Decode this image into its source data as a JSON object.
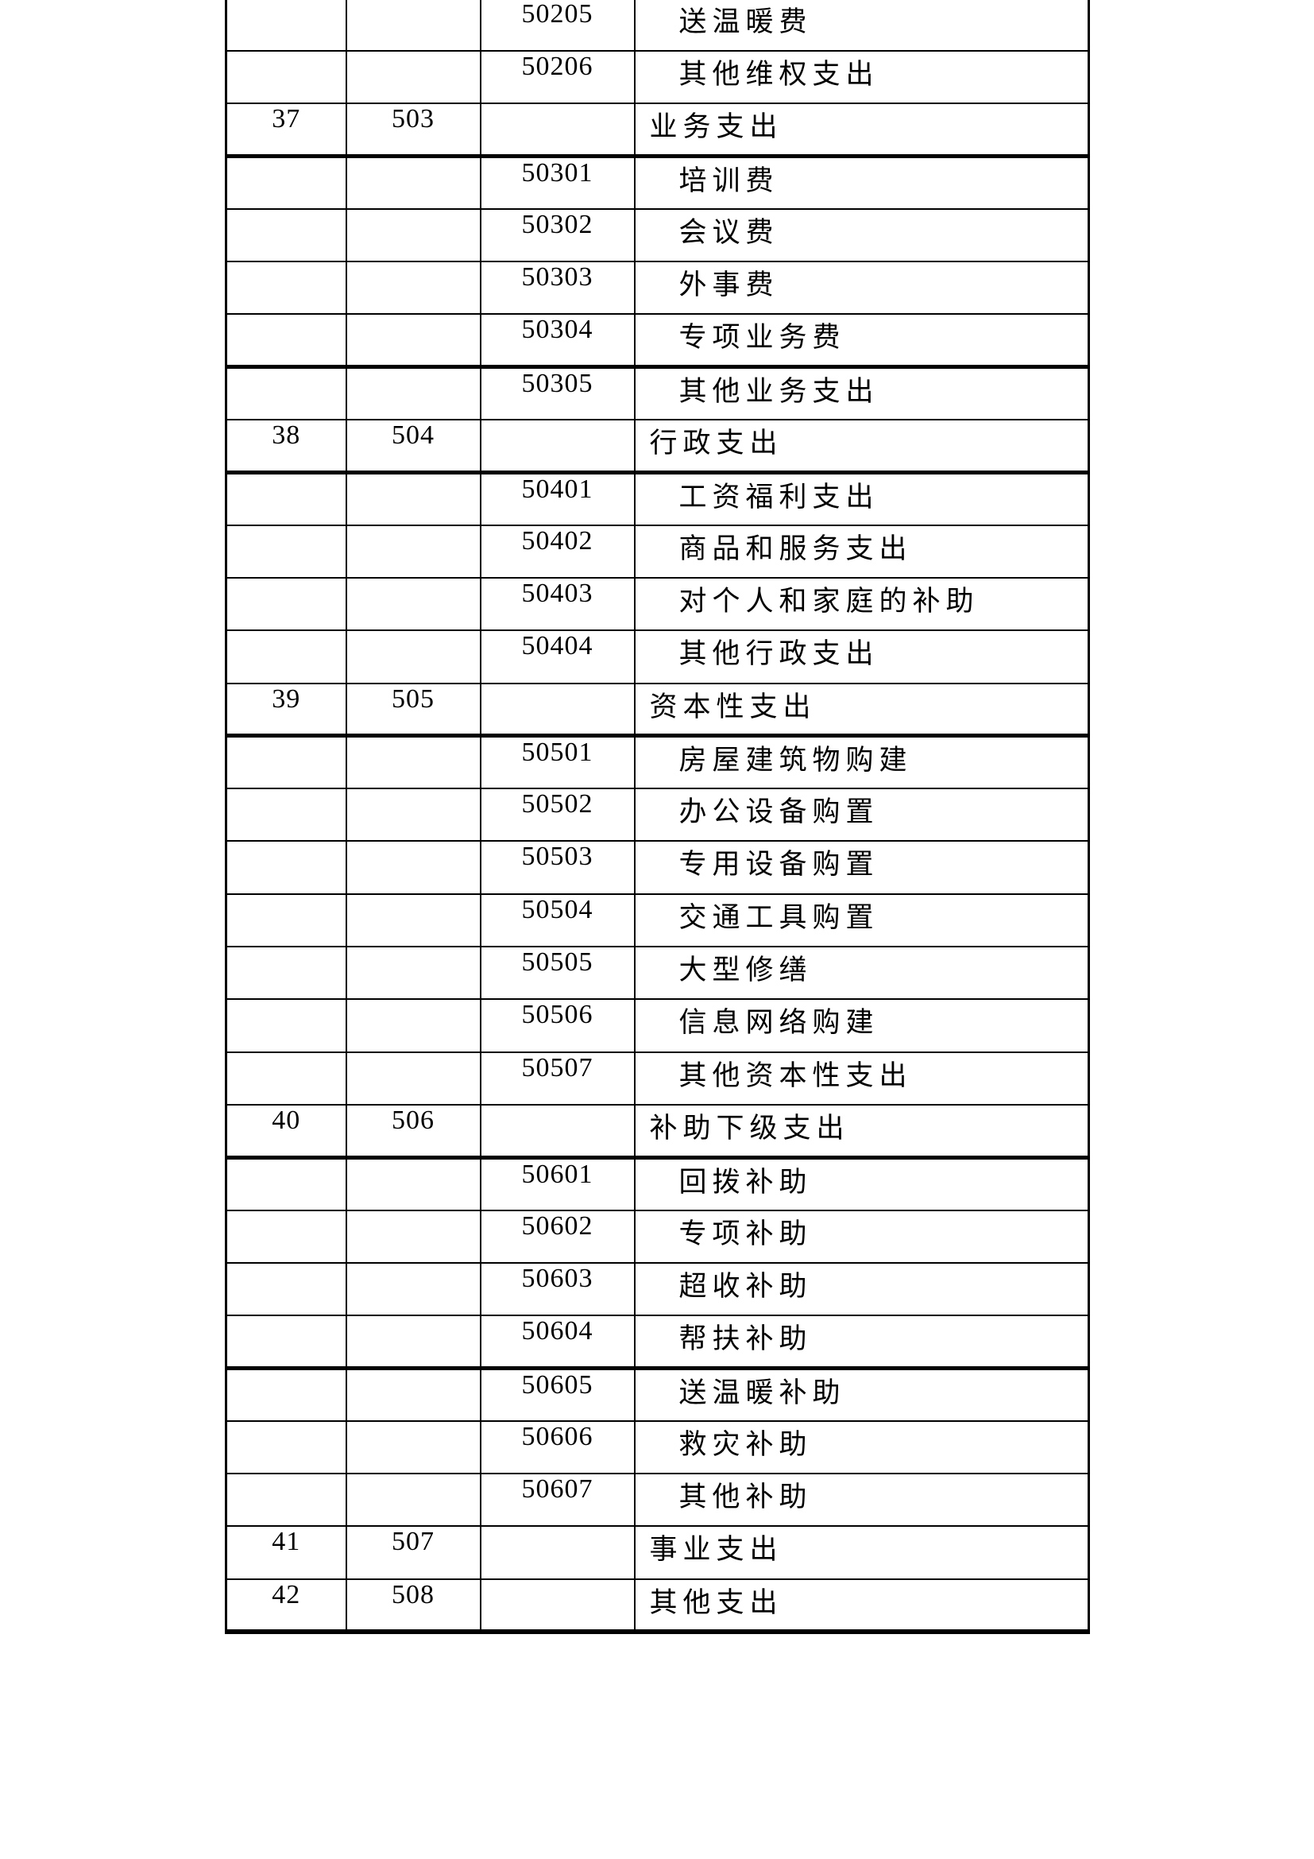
{
  "page": {
    "background_color": "#ffffff",
    "text_color": "#000000",
    "border_color": "#000000"
  },
  "table": {
    "description": "chart-of-accounts expense code table, continuation page (no header row visible)",
    "rows": [
      {
        "seq": "",
        "code": "",
        "subcode": "50205",
        "name": "送温暖费",
        "level": 2,
        "thick": false
      },
      {
        "seq": "",
        "code": "",
        "subcode": "50206",
        "name": "其他维权支出",
        "level": 2,
        "thick": false
      },
      {
        "seq": "37",
        "code": "503",
        "subcode": "",
        "name": "业务支出",
        "level": 1,
        "thick": true
      },
      {
        "seq": "",
        "code": "",
        "subcode": "50301",
        "name": "培训费",
        "level": 2,
        "thick": false
      },
      {
        "seq": "",
        "code": "",
        "subcode": "50302",
        "name": "会议费",
        "level": 2,
        "thick": false
      },
      {
        "seq": "",
        "code": "",
        "subcode": "50303",
        "name": "外事费",
        "level": 2,
        "thick": false
      },
      {
        "seq": "",
        "code": "",
        "subcode": "50304",
        "name": "专项业务费",
        "level": 2,
        "thick": true
      },
      {
        "seq": "",
        "code": "",
        "subcode": "50305",
        "name": "其他业务支出",
        "level": 2,
        "thick": false
      },
      {
        "seq": "38",
        "code": "504",
        "subcode": "",
        "name": "行政支出",
        "level": 1,
        "thick": true
      },
      {
        "seq": "",
        "code": "",
        "subcode": "50401",
        "name": "工资福利支出",
        "level": 2,
        "thick": false
      },
      {
        "seq": "",
        "code": "",
        "subcode": "50402",
        "name": "商品和服务支出",
        "level": 2,
        "thick": false
      },
      {
        "seq": "",
        "code": "",
        "subcode": "50403",
        "name": "对个人和家庭的补助",
        "level": 2,
        "thick": false
      },
      {
        "seq": "",
        "code": "",
        "subcode": "50404",
        "name": "其他行政支出",
        "level": 2,
        "thick": false
      },
      {
        "seq": "39",
        "code": "505",
        "subcode": "",
        "name": "资本性支出",
        "level": 1,
        "thick": true
      },
      {
        "seq": "",
        "code": "",
        "subcode": "50501",
        "name": "房屋建筑物购建",
        "level": 2,
        "thick": false
      },
      {
        "seq": "",
        "code": "",
        "subcode": "50502",
        "name": "办公设备购置",
        "level": 2,
        "thick": false
      },
      {
        "seq": "",
        "code": "",
        "subcode": "50503",
        "name": "专用设备购置",
        "level": 2,
        "thick": false
      },
      {
        "seq": "",
        "code": "",
        "subcode": "50504",
        "name": "交通工具购置",
        "level": 2,
        "thick": false
      },
      {
        "seq": "",
        "code": "",
        "subcode": "50505",
        "name": "大型修缮",
        "level": 2,
        "thick": false
      },
      {
        "seq": "",
        "code": "",
        "subcode": "50506",
        "name": "信息网络购建",
        "level": 2,
        "thick": false
      },
      {
        "seq": "",
        "code": "",
        "subcode": "50507",
        "name": "其他资本性支出",
        "level": 2,
        "thick": false
      },
      {
        "seq": "40",
        "code": "506",
        "subcode": "",
        "name": "补助下级支出",
        "level": 1,
        "thick": true
      },
      {
        "seq": "",
        "code": "",
        "subcode": "50601",
        "name": "回拨补助",
        "level": 2,
        "thick": false
      },
      {
        "seq": "",
        "code": "",
        "subcode": "50602",
        "name": "专项补助",
        "level": 2,
        "thick": false
      },
      {
        "seq": "",
        "code": "",
        "subcode": "50603",
        "name": "超收补助",
        "level": 2,
        "thick": false
      },
      {
        "seq": "",
        "code": "",
        "subcode": "50604",
        "name": "帮扶补助",
        "level": 2,
        "thick": true
      },
      {
        "seq": "",
        "code": "",
        "subcode": "50605",
        "name": "送温暖补助",
        "level": 2,
        "thick": false
      },
      {
        "seq": "",
        "code": "",
        "subcode": "50606",
        "name": "救灾补助",
        "level": 2,
        "thick": false
      },
      {
        "seq": "",
        "code": "",
        "subcode": "50607",
        "name": "其他补助",
        "level": 2,
        "thick": false
      },
      {
        "seq": "41",
        "code": "507",
        "subcode": "",
        "name": "事业支出",
        "level": 1,
        "thick": false
      },
      {
        "seq": "42",
        "code": "508",
        "subcode": "",
        "name": "其他支出",
        "level": 1,
        "thick": false
      }
    ]
  }
}
